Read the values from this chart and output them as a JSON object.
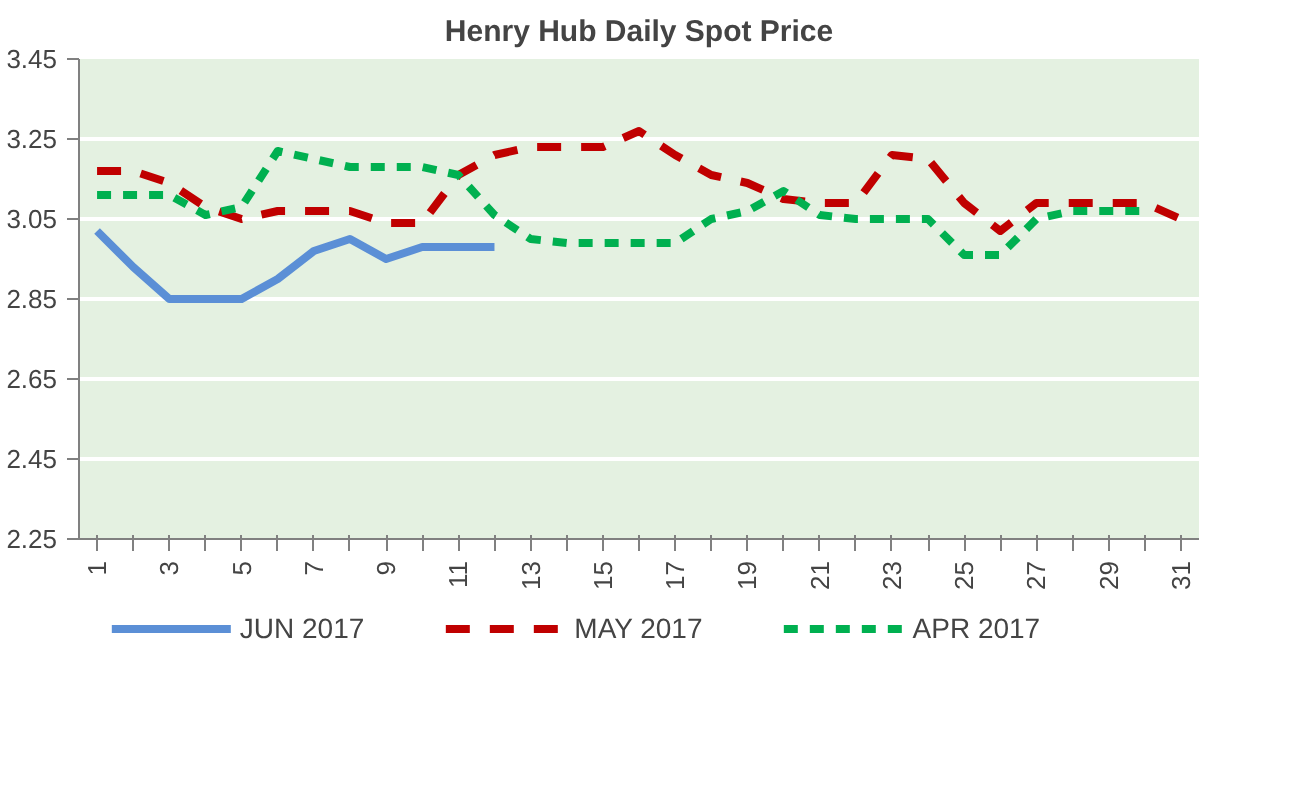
{
  "chart_data": {
    "type": "line",
    "title": "Henry Hub Daily Spot Price",
    "categories": [
      "1",
      null,
      "3",
      null,
      "5",
      null,
      "7",
      null,
      "9",
      null,
      "11",
      null,
      "13",
      null,
      "15",
      null,
      "17",
      null,
      "19",
      null,
      "21",
      null,
      "23",
      null,
      "25",
      null,
      "27",
      null,
      "29",
      null,
      "31"
    ],
    "series": [
      {
        "name": "JUN 2017",
        "color": "#5b8fd6",
        "line_style": "solid",
        "values": [
          3.02,
          2.93,
          2.85,
          2.85,
          2.85,
          2.9,
          2.97,
          3.0,
          2.95,
          2.98,
          2.98,
          2.98,
          null,
          null,
          null,
          null,
          null,
          null,
          null,
          null,
          null,
          null,
          null,
          null,
          null,
          null,
          null,
          null,
          null,
          null,
          null
        ]
      },
      {
        "name": "MAY 2017",
        "color": "#c00000",
        "line_style": "dashed",
        "values": [
          3.17,
          3.17,
          3.14,
          3.08,
          3.05,
          3.07,
          3.07,
          3.07,
          3.04,
          3.04,
          3.16,
          3.21,
          3.23,
          3.23,
          3.23,
          3.27,
          3.21,
          3.16,
          3.14,
          3.1,
          3.09,
          3.09,
          3.21,
          3.2,
          3.09,
          3.02,
          3.09,
          3.09,
          3.09,
          3.09,
          3.05
        ]
      },
      {
        "name": "APR 2017",
        "color": "#00b050",
        "line_style": "dotted",
        "values": [
          3.11,
          3.11,
          3.11,
          3.06,
          3.08,
          3.22,
          3.2,
          3.18,
          3.18,
          3.18,
          3.16,
          3.06,
          3.0,
          2.99,
          2.99,
          2.99,
          2.99,
          3.05,
          3.07,
          3.12,
          3.06,
          3.05,
          3.05,
          3.05,
          2.96,
          2.96,
          3.05,
          3.07,
          3.07,
          3.07,
          null
        ]
      }
    ],
    "ylim": [
      2.25,
      3.45
    ],
    "yticks": [
      2.25,
      2.45,
      2.65,
      2.85,
      3.05,
      3.25,
      3.45
    ],
    "grid": "y",
    "legend": "bottom",
    "marker": "none"
  }
}
